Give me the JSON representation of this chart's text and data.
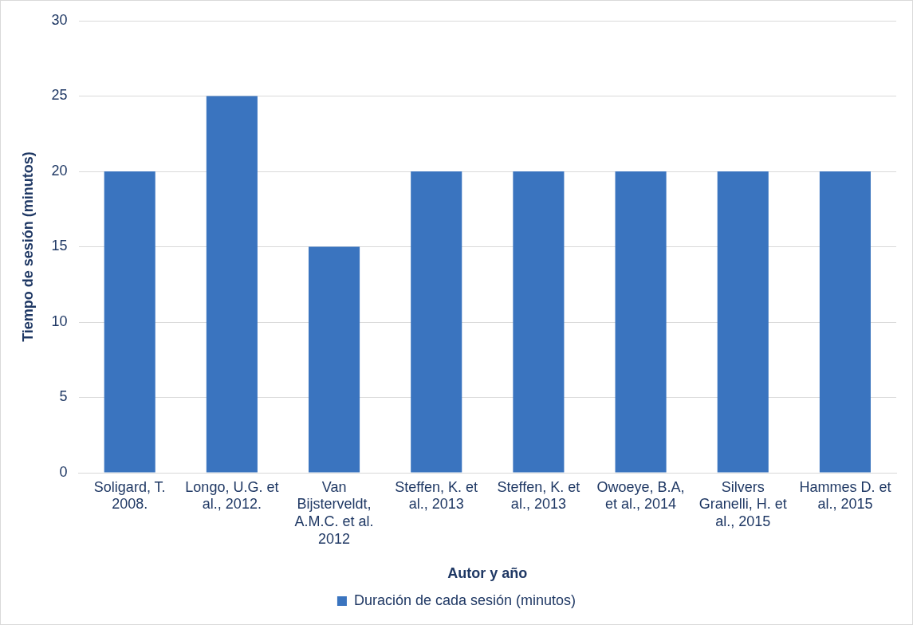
{
  "chart_data": {
    "type": "bar",
    "xlabel": "Autor y año",
    "ylabel": "Tiempo de sesión (minutos)",
    "categories": [
      "Soligard, T. 2008.",
      "Longo, U.G. et al., 2012.",
      "Van Bijsterveldt, A.M.C. et al. 2012",
      "Steffen, K. et al., 2013",
      "Steffen, K. et al., 2013",
      "Owoeye, B.A, et al., 2014",
      "Silvers Granelli, H. et al., 2015",
      "Hammes D. et al., 2015"
    ],
    "series": [
      {
        "name": "Duración de cada sesión (minutos)",
        "color": "#3a74bf",
        "values": [
          20,
          25,
          15,
          20,
          20,
          20,
          20,
          20
        ]
      }
    ],
    "ylim": [
      0,
      30
    ],
    "yticks": [
      0,
      5,
      10,
      15,
      20,
      25,
      30
    ],
    "grid": "y",
    "legend": "bottom"
  }
}
